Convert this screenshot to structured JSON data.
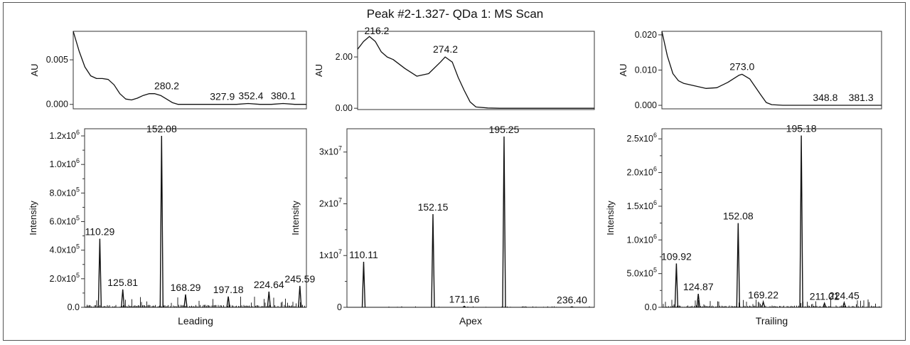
{
  "title": "Peak #2-1.327- QDa 1: MS Scan",
  "colors": {
    "line": "#111111",
    "frame": "#333333"
  },
  "chart_data": [
    {
      "type": "line",
      "panel": "UV leading",
      "ylabel": "AU",
      "ylim": [
        -0.0005,
        0.0082
      ],
      "yticks": [
        {
          "v": 0.0,
          "label": "0.000"
        },
        {
          "v": 0.005,
          "label": "0.005"
        }
      ],
      "xlim": [
        200,
        400
      ],
      "x": [
        200,
        205,
        210,
        215,
        220,
        225,
        230,
        235,
        240,
        245,
        250,
        255,
        260,
        265,
        270,
        275,
        280,
        285,
        290,
        295,
        300,
        310,
        320,
        330,
        340,
        350,
        360,
        370,
        380,
        390,
        400
      ],
      "y": [
        0.0082,
        0.006,
        0.0042,
        0.0032,
        0.0029,
        0.0029,
        0.0028,
        0.0022,
        0.0012,
        0.0006,
        0.0005,
        0.0007,
        0.001,
        0.0012,
        0.0012,
        0.001,
        0.0006,
        0.0002,
        0.0,
        0.0,
        0.0,
        0.0,
        0.0,
        0.0,
        0.0,
        0.0001,
        0.0,
        0.0,
        0.0001,
        0.0,
        0.0
      ],
      "labels": [
        {
          "x": 280.2,
          "y": 0.0012,
          "text": "280.2"
        },
        {
          "x": 327.9,
          "y": 0.0,
          "text": "327.9"
        },
        {
          "x": 352.4,
          "y": 0.0001,
          "text": "352.4"
        },
        {
          "x": 380.1,
          "y": 0.0001,
          "text": "380.1"
        }
      ]
    },
    {
      "type": "line",
      "panel": "UV apex",
      "ylabel": "AU",
      "ylim": [
        -0.05,
        3.0
      ],
      "yticks": [
        {
          "v": 0.0,
          "label": "0.00"
        },
        {
          "v": 2.0,
          "label": "2.00"
        }
      ],
      "xlim": [
        200,
        400
      ],
      "x": [
        200,
        205,
        210,
        215,
        220,
        225,
        230,
        240,
        250,
        260,
        270,
        274,
        280,
        285,
        290,
        295,
        300,
        310,
        320,
        340,
        360,
        380,
        400
      ],
      "y": [
        2.3,
        2.6,
        2.8,
        2.6,
        2.2,
        2.0,
        1.9,
        1.55,
        1.25,
        1.35,
        1.8,
        2.0,
        1.8,
        1.2,
        0.7,
        0.25,
        0.05,
        0.01,
        0.0,
        0.0,
        0.0,
        0.0,
        0.0
      ],
      "labels": [
        {
          "x": 216.2,
          "y": 2.72,
          "text": "216.2"
        },
        {
          "x": 274.2,
          "y": 2.0,
          "text": "274.2"
        }
      ]
    },
    {
      "type": "line",
      "panel": "UV trailing",
      "ylabel": "AU",
      "ylim": [
        -0.001,
        0.021
      ],
      "yticks": [
        {
          "v": 0.0,
          "label": "0.000"
        },
        {
          "v": 0.01,
          "label": "0.010"
        },
        {
          "v": 0.02,
          "label": "0.020"
        }
      ],
      "xlim": [
        200,
        400
      ],
      "x": [
        200,
        205,
        210,
        215,
        220,
        230,
        240,
        250,
        260,
        270,
        273,
        280,
        290,
        295,
        300,
        310,
        320,
        340,
        360,
        380,
        400
      ],
      "y": [
        0.021,
        0.014,
        0.009,
        0.007,
        0.0062,
        0.0055,
        0.0048,
        0.005,
        0.0065,
        0.0085,
        0.0088,
        0.0075,
        0.003,
        0.0008,
        0.0002,
        0.0,
        0.0,
        0.0,
        0.0,
        0.0,
        0.0
      ],
      "labels": [
        {
          "x": 273.0,
          "y": 0.0088,
          "text": "273.0"
        },
        {
          "x": 348.8,
          "y": 0.0,
          "text": "348.8"
        },
        {
          "x": 381.3,
          "y": 0.0,
          "text": "381.3"
        }
      ]
    },
    {
      "type": "bar",
      "panel": "MS leading",
      "xlabel": "Leading",
      "ylabel": "Intensity",
      "ylim": [
        0,
        1250000
      ],
      "yticks": [
        {
          "v": 0,
          "label": "0.0"
        },
        {
          "v": 200000,
          "label": "2.0x10",
          "exp": "5"
        },
        {
          "v": 400000,
          "label": "4.0x10",
          "exp": "5"
        },
        {
          "v": 600000,
          "label": "6.0x10",
          "exp": "5"
        },
        {
          "v": 800000,
          "label": "8.0x10",
          "exp": "5"
        },
        {
          "v": 1000000,
          "label": "1.0x10",
          "exp": "6"
        },
        {
          "v": 1200000,
          "label": "1.2x10",
          "exp": "6"
        }
      ],
      "xlim": [
        100,
        250
      ],
      "peaks": [
        {
          "x": 110.29,
          "y": 480000,
          "label": "110.29"
        },
        {
          "x": 125.81,
          "y": 125000,
          "label": "125.81"
        },
        {
          "x": 152.08,
          "y": 1200000,
          "label": "152.08"
        },
        {
          "x": 168.29,
          "y": 90000,
          "label": "168.29"
        },
        {
          "x": 197.18,
          "y": 75000,
          "label": "197.18"
        },
        {
          "x": 224.64,
          "y": 110000,
          "label": "224.64"
        },
        {
          "x": 245.59,
          "y": 150000,
          "label": "245.59"
        }
      ],
      "noise_level": 50000
    },
    {
      "type": "bar",
      "panel": "MS apex",
      "xlabel": "Apex",
      "ylabel": "Intensity",
      "ylim": [
        0,
        34500000
      ],
      "yticks": [
        {
          "v": 0,
          "label": "0"
        },
        {
          "v": 10000000,
          "label": "1x10",
          "exp": "7"
        },
        {
          "v": 20000000,
          "label": "2x10",
          "exp": "7"
        },
        {
          "v": 30000000,
          "label": "3x10",
          "exp": "7"
        }
      ],
      "xlim": [
        100,
        250
      ],
      "peaks": [
        {
          "x": 110.11,
          "y": 8800000,
          "label": "110.11"
        },
        {
          "x": 152.15,
          "y": 18000000,
          "label": "152.15"
        },
        {
          "x": 171.16,
          "y": 200000,
          "label": "171.16"
        },
        {
          "x": 195.25,
          "y": 33000000,
          "label": "195.25"
        },
        {
          "x": 236.4,
          "y": 100000,
          "label": "236.40"
        }
      ],
      "noise_level": 150000
    },
    {
      "type": "bar",
      "panel": "MS trailing",
      "xlabel": "Trailing",
      "ylabel": "Intensity",
      "ylim": [
        0,
        2650000
      ],
      "yticks": [
        {
          "v": 0,
          "label": "0.0"
        },
        {
          "v": 500000,
          "label": "5.0x10",
          "exp": "5"
        },
        {
          "v": 1000000,
          "label": "1.0x10",
          "exp": "6"
        },
        {
          "v": 1500000,
          "label": "1.5x10",
          "exp": "6"
        },
        {
          "v": 2000000,
          "label": "2.0x10",
          "exp": "6"
        },
        {
          "v": 2500000,
          "label": "2.5x10",
          "exp": "6"
        }
      ],
      "xlim": [
        100,
        250
      ],
      "peaks": [
        {
          "x": 109.92,
          "y": 650000,
          "label": "109.92"
        },
        {
          "x": 124.87,
          "y": 200000,
          "label": "124.87"
        },
        {
          "x": 152.08,
          "y": 1250000,
          "label": "152.08"
        },
        {
          "x": 169.22,
          "y": 80000,
          "label": "169.22"
        },
        {
          "x": 195.18,
          "y": 2550000,
          "label": "195.18"
        },
        {
          "x": 211.01,
          "y": 60000,
          "label": "211.01"
        },
        {
          "x": 224.45,
          "y": 70000,
          "label": "224.45"
        }
      ],
      "noise_level": 80000
    }
  ]
}
